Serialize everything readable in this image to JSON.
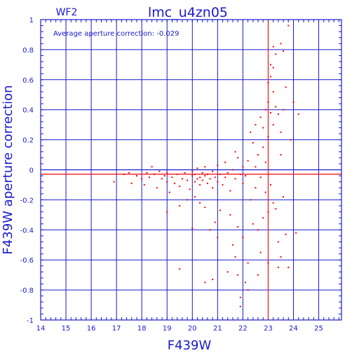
{
  "chart_data": {
    "type": "scatter",
    "title": "lmc_u4zn05",
    "subtitle": "WF2",
    "annotation": "Average aperture correction: -0.029",
    "xlabel": "F439W",
    "ylabel": "F439W aperture correction",
    "xlim": [
      14,
      25.9
    ],
    "ylim": [
      -1,
      1
    ],
    "x_ticks": [
      "14",
      "15",
      "16",
      "17",
      "18",
      "19",
      "20",
      "21",
      "22",
      "23",
      "24",
      "25"
    ],
    "y_ticks": [
      "1",
      "0.8",
      "0.6",
      "0.4",
      "0.2",
      "0",
      "-0.2",
      "-0.4",
      "-0.6",
      "-0.8",
      "-1"
    ],
    "grid": true,
    "reference_lines": {
      "zero": 0,
      "average": -0.029,
      "x_line": 23.0
    },
    "colors": {
      "axes": "#1a1acc",
      "grid": "#1a1acc",
      "points": "#ff0000",
      "average_line": "#ff0000"
    },
    "points": [
      {
        "x": 16.9,
        "y": -0.08
      },
      {
        "x": 17.3,
        "y": -0.03
      },
      {
        "x": 17.5,
        "y": -0.02
      },
      {
        "x": 17.6,
        "y": -0.09
      },
      {
        "x": 17.8,
        "y": -0.04
      },
      {
        "x": 18.0,
        "y": -0.06
      },
      {
        "x": 18.1,
        "y": -0.1
      },
      {
        "x": 18.2,
        "y": -0.02
      },
      {
        "x": 18.3,
        "y": -0.05
      },
      {
        "x": 18.4,
        "y": 0.02
      },
      {
        "x": 18.5,
        "y": -0.03
      },
      {
        "x": 18.6,
        "y": -0.12
      },
      {
        "x": 18.7,
        "y": -0.01
      },
      {
        "x": 18.8,
        "y": -0.06
      },
      {
        "x": 18.9,
        "y": -0.04
      },
      {
        "x": 19.0,
        "y": -0.08
      },
      {
        "x": 19.0,
        "y": -0.02
      },
      {
        "x": 19.1,
        "y": -0.15
      },
      {
        "x": 19.2,
        "y": -0.05
      },
      {
        "x": 19.3,
        "y": -0.09
      },
      {
        "x": 19.4,
        "y": -0.03
      },
      {
        "x": 19.5,
        "y": -0.11
      },
      {
        "x": 19.6,
        "y": -0.06
      },
      {
        "x": 19.7,
        "y": -0.02
      },
      {
        "x": 19.8,
        "y": -0.07
      },
      {
        "x": 19.9,
        "y": -0.13
      },
      {
        "x": 20.0,
        "y": -0.04
      },
      {
        "x": 20.0,
        "y": -0.01
      },
      {
        "x": 20.1,
        "y": -0.08
      },
      {
        "x": 20.1,
        "y": -0.03
      },
      {
        "x": 20.2,
        "y": -0.06
      },
      {
        "x": 20.2,
        "y": 0.01
      },
      {
        "x": 20.3,
        "y": -0.05
      },
      {
        "x": 20.3,
        "y": -0.1
      },
      {
        "x": 20.4,
        "y": -0.02
      },
      {
        "x": 20.4,
        "y": -0.07
      },
      {
        "x": 20.5,
        "y": -0.04
      },
      {
        "x": 20.5,
        "y": 0.02
      },
      {
        "x": 20.6,
        "y": -0.09
      },
      {
        "x": 20.6,
        "y": -0.03
      },
      {
        "x": 20.7,
        "y": -0.06
      },
      {
        "x": 20.8,
        "y": -0.12
      },
      {
        "x": 20.8,
        "y": -0.01
      },
      {
        "x": 20.9,
        "y": -0.05
      },
      {
        "x": 21.0,
        "y": -0.08
      },
      {
        "x": 21.0,
        "y": 0.03
      },
      {
        "x": 21.1,
        "y": -0.03
      },
      {
        "x": 21.2,
        "y": -0.1
      },
      {
        "x": 21.3,
        "y": -0.05
      },
      {
        "x": 21.3,
        "y": 0.05
      },
      {
        "x": 21.4,
        "y": -0.02
      },
      {
        "x": 21.5,
        "y": -0.14
      },
      {
        "x": 21.6,
        "y": 0.0
      },
      {
        "x": 21.7,
        "y": -0.06
      },
      {
        "x": 21.8,
        "y": 0.08
      },
      {
        "x": 21.9,
        "y": -0.03
      },
      {
        "x": 22.0,
        "y": -0.09
      },
      {
        "x": 22.0,
        "y": 0.02
      },
      {
        "x": 22.1,
        "y": -0.04
      },
      {
        "x": 22.2,
        "y": 0.06
      },
      {
        "x": 20.3,
        "y": -0.22
      },
      {
        "x": 20.5,
        "y": -0.25
      },
      {
        "x": 19.8,
        "y": -0.2
      },
      {
        "x": 20.1,
        "y": -0.18
      },
      {
        "x": 19.5,
        "y": -0.24
      },
      {
        "x": 19.0,
        "y": -0.28
      },
      {
        "x": 20.9,
        "y": -0.35
      },
      {
        "x": 21.1,
        "y": -0.27
      },
      {
        "x": 21.5,
        "y": -0.3
      },
      {
        "x": 20.0,
        "y": -0.39
      },
      {
        "x": 20.7,
        "y": -0.4
      },
      {
        "x": 21.8,
        "y": -0.38
      },
      {
        "x": 21.0,
        "y": -0.45
      },
      {
        "x": 21.6,
        "y": -0.5
      },
      {
        "x": 22.0,
        "y": -0.45
      },
      {
        "x": 21.7,
        "y": -0.58
      },
      {
        "x": 22.2,
        "y": -0.62
      },
      {
        "x": 21.4,
        "y": -0.68
      },
      {
        "x": 21.8,
        "y": -0.7
      },
      {
        "x": 22.1,
        "y": -0.75
      },
      {
        "x": 19.5,
        "y": -0.66
      },
      {
        "x": 20.5,
        "y": -0.75
      },
      {
        "x": 20.8,
        "y": -0.73
      },
      {
        "x": 21.9,
        "y": -0.85
      },
      {
        "x": 21.9,
        "y": -0.91
      },
      {
        "x": 22.2,
        "y": -0.8
      },
      {
        "x": 22.6,
        "y": -0.7
      },
      {
        "x": 22.4,
        "y": -0.36
      },
      {
        "x": 22.6,
        "y": -0.4
      },
      {
        "x": 22.8,
        "y": -0.32
      },
      {
        "x": 23.0,
        "y": -0.28
      },
      {
        "x": 23.2,
        "y": -0.22
      },
      {
        "x": 23.3,
        "y": -0.26
      },
      {
        "x": 23.4,
        "y": -0.48
      },
      {
        "x": 23.5,
        "y": -0.58
      },
      {
        "x": 23.4,
        "y": -0.65
      },
      {
        "x": 23.7,
        "y": -0.43
      },
      {
        "x": 24.1,
        "y": -0.42
      },
      {
        "x": 23.0,
        "y": -0.62
      },
      {
        "x": 22.5,
        "y": 0.02
      },
      {
        "x": 22.6,
        "y": 0.1
      },
      {
        "x": 22.7,
        "y": -0.05
      },
      {
        "x": 22.8,
        "y": 0.15
      },
      {
        "x": 22.9,
        "y": 0.05
      },
      {
        "x": 23.0,
        "y": 0.22
      },
      {
        "x": 23.1,
        "y": -0.1
      },
      {
        "x": 23.2,
        "y": 0.3
      },
      {
        "x": 22.4,
        "y": 0.18
      },
      {
        "x": 22.3,
        "y": 0.25
      },
      {
        "x": 22.5,
        "y": 0.3
      },
      {
        "x": 22.7,
        "y": 0.35
      },
      {
        "x": 22.8,
        "y": 0.28
      },
      {
        "x": 22.9,
        "y": 0.4
      },
      {
        "x": 23.0,
        "y": 0.45
      },
      {
        "x": 23.1,
        "y": 0.38
      },
      {
        "x": 23.2,
        "y": 0.52
      },
      {
        "x": 23.3,
        "y": 0.42
      },
      {
        "x": 23.4,
        "y": 0.37
      },
      {
        "x": 23.5,
        "y": 0.25
      },
      {
        "x": 23.6,
        "y": 0.4
      },
      {
        "x": 23.7,
        "y": 0.55
      },
      {
        "x": 23.1,
        "y": 0.62
      },
      {
        "x": 23.2,
        "y": 0.68
      },
      {
        "x": 23.0,
        "y": 0.58
      },
      {
        "x": 23.1,
        "y": 0.7
      },
      {
        "x": 23.3,
        "y": 0.77
      },
      {
        "x": 23.2,
        "y": 0.82
      },
      {
        "x": 23.6,
        "y": 0.79
      },
      {
        "x": 23.5,
        "y": 0.84
      },
      {
        "x": 23.8,
        "y": 0.96
      },
      {
        "x": 24.0,
        "y": 0.45
      },
      {
        "x": 24.2,
        "y": 0.37
      },
      {
        "x": 23.6,
        "y": -0.18
      },
      {
        "x": 23.5,
        "y": 0.1
      },
      {
        "x": 22.9,
        "y": -0.15
      },
      {
        "x": 22.3,
        "y": -0.2
      },
      {
        "x": 22.5,
        "y": -0.12
      },
      {
        "x": 21.7,
        "y": 0.12
      },
      {
        "x": 23.8,
        "y": -0.65
      },
      {
        "x": 23.9,
        "y": 0.2
      },
      {
        "x": 22.7,
        "y": -0.55
      }
    ]
  }
}
